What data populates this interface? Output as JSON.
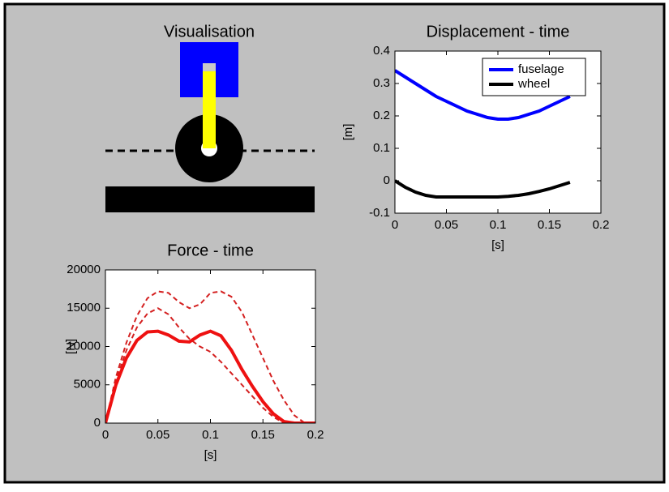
{
  "visualisation": {
    "title": "Visualisation"
  },
  "chart_data": [
    {
      "type": "line",
      "title": "Displacement - time",
      "xlabel": "[s]",
      "ylabel": "[m]",
      "x": [
        0,
        0.01,
        0.02,
        0.03,
        0.04,
        0.05,
        0.06,
        0.07,
        0.08,
        0.09,
        0.1,
        0.11,
        0.12,
        0.13,
        0.14,
        0.15,
        0.16,
        0.17
      ],
      "series": [
        {
          "name": "fuselage",
          "color": "#0000ff",
          "values": [
            0.34,
            0.32,
            0.3,
            0.28,
            0.26,
            0.245,
            0.23,
            0.215,
            0.205,
            0.195,
            0.19,
            0.19,
            0.195,
            0.205,
            0.215,
            0.23,
            0.245,
            0.26
          ]
        },
        {
          "name": "wheel",
          "color": "#000000",
          "values": [
            0,
            -0.02,
            -0.035,
            -0.045,
            -0.05,
            -0.05,
            -0.05,
            -0.05,
            -0.05,
            -0.05,
            -0.05,
            -0.048,
            -0.045,
            -0.04,
            -0.033,
            -0.025,
            -0.015,
            -0.005
          ]
        }
      ],
      "xlim": [
        0,
        0.2
      ],
      "xticks": [
        0,
        0.05,
        0.1,
        0.15,
        0.2
      ],
      "ylim": [
        -0.1,
        0.4
      ],
      "yticks": [
        -0.1,
        0,
        0.1,
        0.2,
        0.3,
        0.4
      ],
      "legend": "upper right"
    },
    {
      "type": "line",
      "title": "Force - time",
      "xlabel": "[s]",
      "ylabel": "[N]",
      "x": [
        0,
        0.01,
        0.02,
        0.03,
        0.04,
        0.05,
        0.06,
        0.07,
        0.08,
        0.09,
        0.1,
        0.11,
        0.12,
        0.13,
        0.14,
        0.15,
        0.16,
        0.17,
        0.18,
        0.19,
        0.2
      ],
      "series": [
        {
          "color": "#d42020",
          "linestyle": "dashed",
          "values": [
            0,
            6000,
            10500,
            14000,
            16300,
            17200,
            17000,
            15800,
            15000,
            15500,
            17000,
            17200,
            16500,
            14500,
            11500,
            8500,
            5500,
            3000,
            1000,
            0,
            null
          ]
        },
        {
          "color": "#d42020",
          "linestyle": "dashed",
          "values": [
            0,
            5500,
            9500,
            12500,
            14300,
            15000,
            14200,
            12500,
            11000,
            10000,
            9300,
            8000,
            6500,
            5000,
            3500,
            2000,
            800,
            0,
            null,
            null,
            null
          ]
        },
        {
          "color": "#ee1111",
          "linestyle": "solid",
          "values": [
            0,
            5000,
            8500,
            10800,
            11900,
            12000,
            11500,
            10700,
            10600,
            11500,
            12000,
            11400,
            9500,
            7000,
            4800,
            2800,
            1200,
            200,
            0,
            0,
            0
          ]
        }
      ],
      "xlim": [
        0,
        0.2
      ],
      "xticks": [
        0,
        0.05,
        0.1,
        0.15,
        0.2
      ],
      "ylim": [
        0,
        20000
      ],
      "yticks": [
        0,
        5000,
        10000,
        15000,
        20000
      ]
    }
  ]
}
